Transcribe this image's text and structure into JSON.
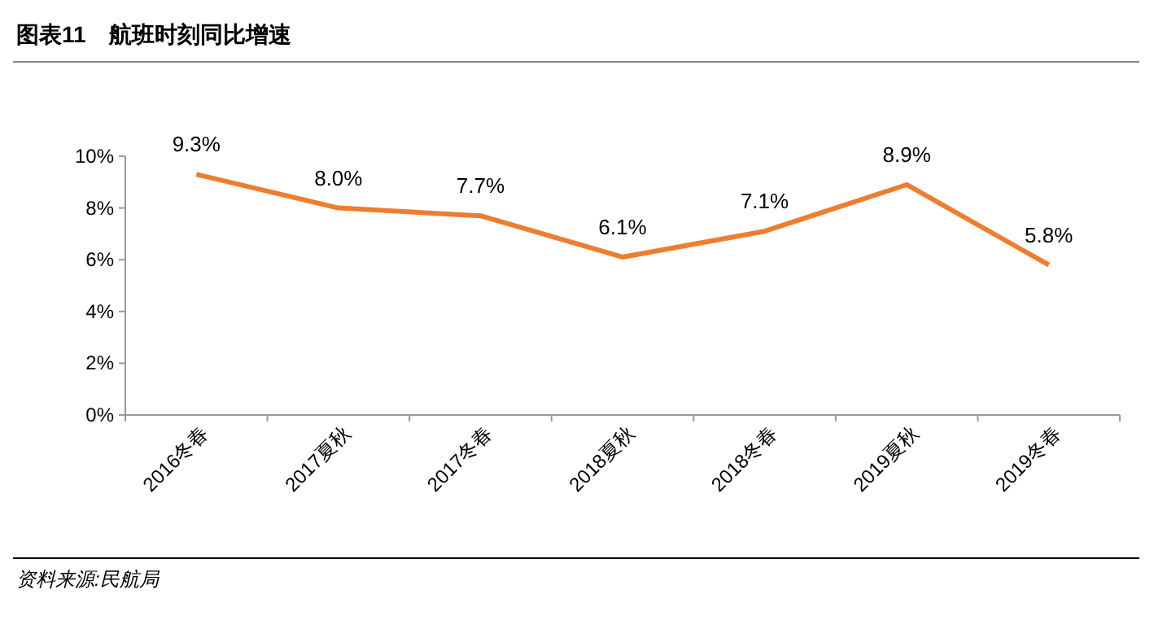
{
  "chart_data": {
    "type": "line",
    "title": "图表11　航班时刻同比增速",
    "categories": [
      "2016冬春",
      "2017夏秋",
      "2017冬春",
      "2018夏秋",
      "2018冬春",
      "2019夏秋",
      "2019冬春"
    ],
    "series": [
      {
        "color": "#ed7d31",
        "values": [
          9.3,
          8.0,
          7.7,
          6.1,
          7.1,
          8.9,
          5.8
        ],
        "value_labels": [
          "9.3%",
          "8.0%",
          "7.7%",
          "6.1%",
          "7.1%",
          "8.9%",
          "5.8%"
        ]
      }
    ],
    "ylim": [
      0,
      10
    ],
    "yticks": [
      {
        "value": 0,
        "label": "0%"
      },
      {
        "value": 2,
        "label": "2%"
      },
      {
        "value": 4,
        "label": "4%"
      },
      {
        "value": 6,
        "label": "6%"
      },
      {
        "value": 8,
        "label": "8%"
      },
      {
        "value": 10,
        "label": "10%"
      }
    ],
    "grid": false,
    "marker": "none",
    "line_style": "solid",
    "annotations": [
      "资料来源:民航局"
    ]
  }
}
